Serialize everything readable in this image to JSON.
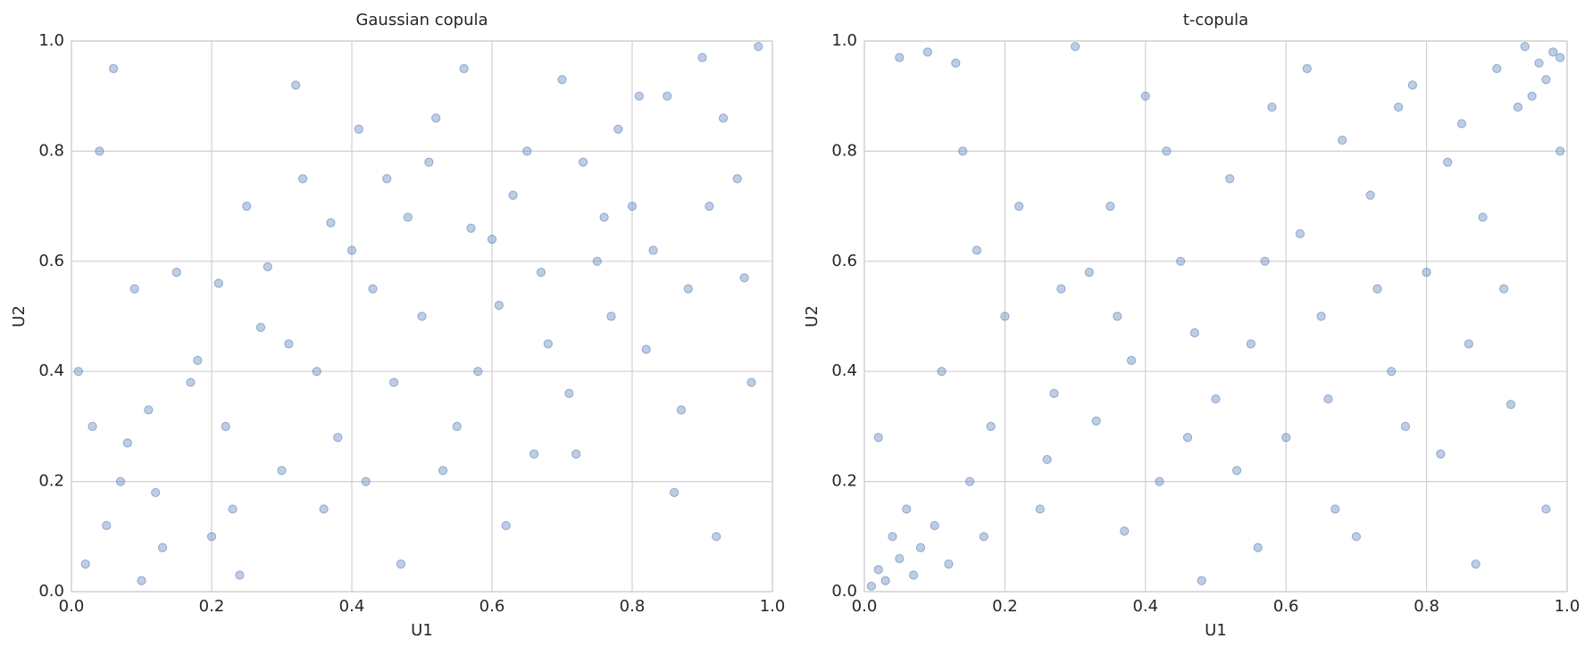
{
  "chart_data": [
    {
      "type": "scatter",
      "title": "Gaussian copula",
      "x_label": "U1",
      "y_label": "U2",
      "color": "#5b82b8",
      "grid": true,
      "xlim": [
        0,
        1
      ],
      "ylim": [
        0,
        1
      ],
      "xticks": [
        {
          "value": 0,
          "label": "0.0"
        },
        0.2,
        0.4,
        0.6,
        0.8,
        {
          "value": 1,
          "label": "1.0"
        }
      ],
      "yticks": [
        {
          "value": 0,
          "label": "0.0"
        },
        0.2,
        0.4,
        0.6,
        0.8,
        {
          "value": 1,
          "label": "1.0"
        }
      ],
      "x": [
        0.02,
        0.05,
        0.08,
        0.1,
        0.12,
        0.03,
        0.06,
        0.04,
        0.15,
        0.18,
        0.2,
        0.22,
        0.25,
        0.28,
        0.3,
        0.32,
        0.35,
        0.37,
        0.4,
        0.42,
        0.45,
        0.47,
        0.5,
        0.52,
        0.55,
        0.57,
        0.6,
        0.62,
        0.65,
        0.68,
        0.7,
        0.72,
        0.75,
        0.78,
        0.8,
        0.82,
        0.85,
        0.88,
        0.9,
        0.92,
        0.95,
        0.98,
        0.97,
        0.93,
        0.87,
        0.83,
        0.77,
        0.73,
        0.67,
        0.63,
        0.58,
        0.53,
        0.48,
        0.43,
        0.38,
        0.33,
        0.27,
        0.23,
        0.17,
        0.13,
        0.09,
        0.07,
        0.01,
        0.24,
        0.36,
        0.46,
        0.56,
        0.66,
        0.76,
        0.86,
        0.96,
        0.91,
        0.81,
        0.71,
        0.61,
        0.51,
        0.41,
        0.31,
        0.21,
        0.11
      ],
      "y": [
        0.05,
        0.12,
        0.27,
        0.02,
        0.18,
        0.3,
        0.95,
        0.8,
        0.58,
        0.42,
        0.1,
        0.3,
        0.7,
        0.59,
        0.22,
        0.92,
        0.4,
        0.67,
        0.62,
        0.2,
        0.75,
        0.05,
        0.5,
        0.86,
        0.3,
        0.66,
        0.64,
        0.12,
        0.8,
        0.45,
        0.93,
        0.25,
        0.6,
        0.84,
        0.7,
        0.44,
        0.9,
        0.55,
        0.97,
        0.1,
        0.75,
        0.99,
        0.38,
        0.86,
        0.33,
        0.62,
        0.5,
        0.78,
        0.58,
        0.72,
        0.4,
        0.22,
        0.68,
        0.55,
        0.28,
        0.75,
        0.48,
        0.15,
        0.38,
        0.08,
        0.55,
        0.2,
        0.4,
        0.03,
        0.15,
        0.38,
        0.95,
        0.25,
        0.68,
        0.18,
        0.57,
        0.7,
        0.9,
        0.36,
        0.52,
        0.78,
        0.84,
        0.45,
        0.56,
        0.33
      ]
    },
    {
      "type": "scatter",
      "title": "t-copula",
      "x_label": "U1",
      "y_label": "U2",
      "color": "#5b82b8",
      "grid": true,
      "xlim": [
        0,
        1
      ],
      "ylim": [
        0,
        1
      ],
      "xticks": [
        {
          "value": 0,
          "label": "0.0"
        },
        0.2,
        0.4,
        0.6,
        0.8,
        {
          "value": 1,
          "label": "1.0"
        }
      ],
      "yticks": [
        {
          "value": 0,
          "label": "0.0"
        },
        0.2,
        0.4,
        0.6,
        0.8,
        {
          "value": 1,
          "label": "1.0"
        }
      ],
      "x": [
        0.01,
        0.02,
        0.03,
        0.05,
        0.04,
        0.07,
        0.08,
        0.1,
        0.12,
        0.06,
        0.15,
        0.02,
        0.05,
        0.09,
        0.13,
        0.2,
        0.18,
        0.25,
        0.28,
        0.3,
        0.33,
        0.35,
        0.38,
        0.4,
        0.42,
        0.45,
        0.48,
        0.5,
        0.52,
        0.55,
        0.58,
        0.6,
        0.62,
        0.65,
        0.68,
        0.7,
        0.72,
        0.75,
        0.78,
        0.8,
        0.82,
        0.85,
        0.88,
        0.9,
        0.92,
        0.94,
        0.95,
        0.96,
        0.97,
        0.98,
        0.99,
        0.93,
        0.91,
        0.97,
        0.99,
        0.87,
        0.77,
        0.67,
        0.57,
        0.47,
        0.37,
        0.27,
        0.17,
        0.11,
        0.14,
        0.22,
        0.32,
        0.43,
        0.53,
        0.63,
        0.73,
        0.83,
        0.86,
        0.76,
        0.66,
        0.56,
        0.46,
        0.36,
        0.26,
        0.16
      ],
      "y": [
        0.01,
        0.04,
        0.02,
        0.06,
        0.1,
        0.03,
        0.08,
        0.12,
        0.05,
        0.15,
        0.2,
        0.28,
        0.97,
        0.98,
        0.96,
        0.5,
        0.3,
        0.15,
        0.55,
        0.99,
        0.31,
        0.7,
        0.42,
        0.9,
        0.2,
        0.6,
        0.02,
        0.35,
        0.75,
        0.45,
        0.88,
        0.28,
        0.65,
        0.5,
        0.82,
        0.1,
        0.72,
        0.4,
        0.92,
        0.58,
        0.25,
        0.85,
        0.68,
        0.95,
        0.34,
        0.99,
        0.9,
        0.96,
        0.93,
        0.98,
        0.97,
        0.88,
        0.55,
        0.15,
        0.8,
        0.05,
        0.3,
        0.15,
        0.6,
        0.47,
        0.11,
        0.36,
        0.1,
        0.4,
        0.8,
        0.7,
        0.58,
        0.8,
        0.22,
        0.95,
        0.55,
        0.78,
        0.45,
        0.88,
        0.35,
        0.08,
        0.28,
        0.5,
        0.24,
        0.62
      ]
    }
  ]
}
